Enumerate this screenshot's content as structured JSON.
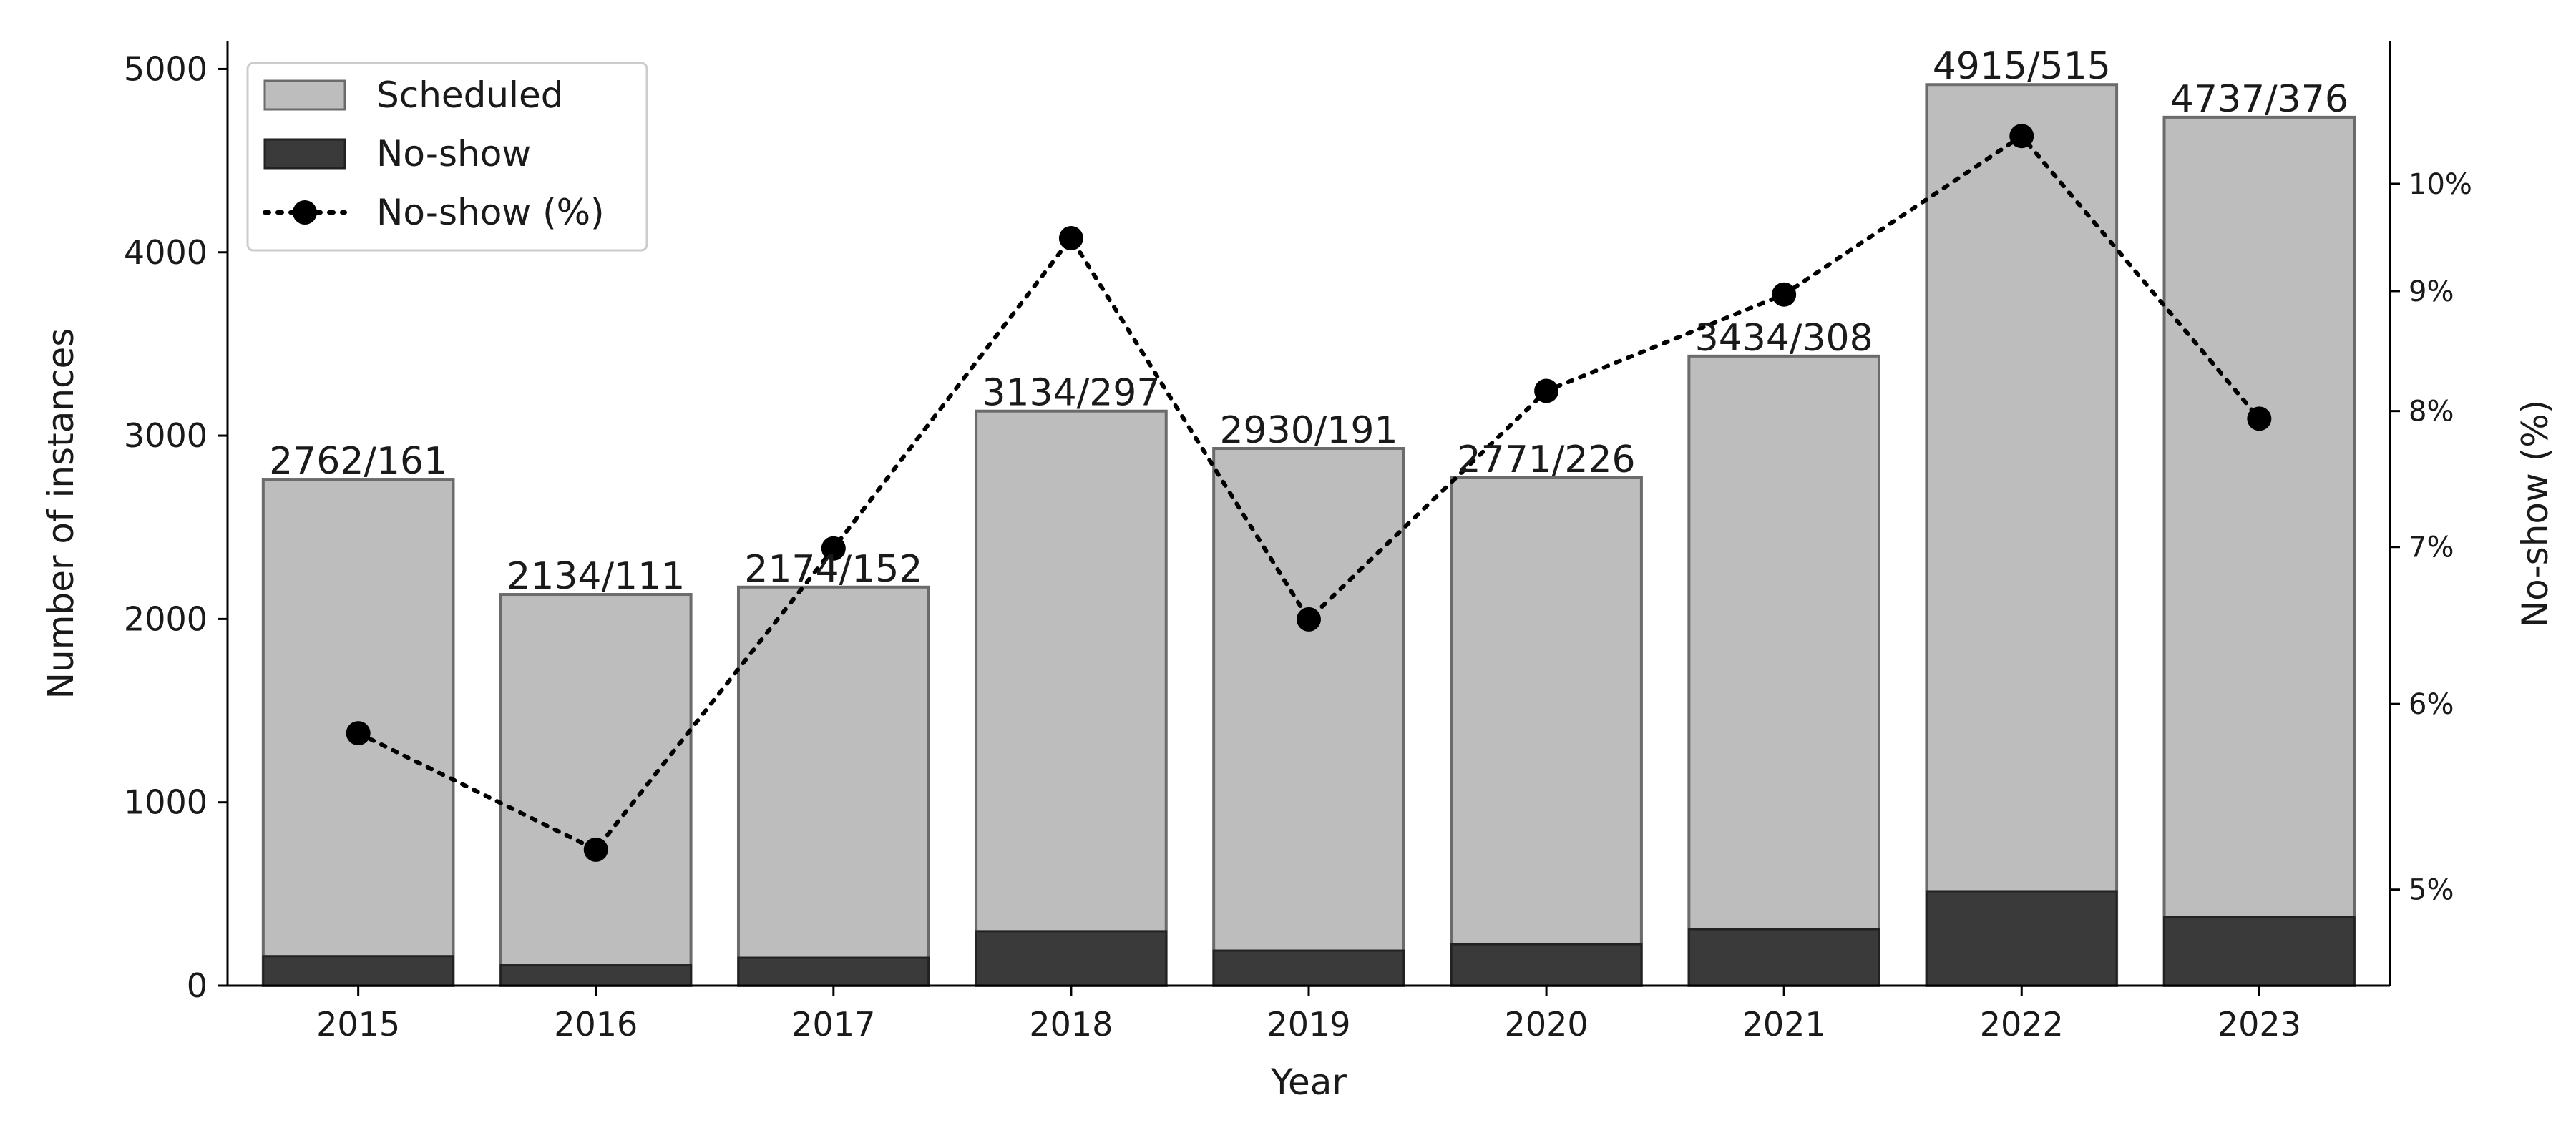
{
  "chart_data": {
    "type": "bar",
    "categories": [
      "2015",
      "2016",
      "2017",
      "2018",
      "2019",
      "2020",
      "2021",
      "2022",
      "2023"
    ],
    "series": [
      {
        "name": "Scheduled",
        "kind": "bar",
        "values": [
          2762,
          2134,
          2174,
          3134,
          2930,
          2771,
          3434,
          4915,
          4737
        ],
        "color": "#bdbdbd"
      },
      {
        "name": "No-show",
        "kind": "bar",
        "values": [
          161,
          111,
          152,
          297,
          191,
          226,
          308,
          515,
          376
        ],
        "color": "#3a3a3a"
      },
      {
        "name": "No-show (%)",
        "kind": "line",
        "axis": "right",
        "values": [
          5.83,
          5.2,
          6.99,
          9.48,
          6.52,
          8.16,
          8.97,
          10.48,
          7.94
        ],
        "color": "#000000",
        "line_style": "dotted"
      }
    ],
    "bar_labels": [
      "2762/161",
      "2134/111",
      "2174/152",
      "3134/297",
      "2930/191",
      "2771/226",
      "3434/308",
      "4915/515",
      "4737/376"
    ],
    "xlabel": "Year",
    "ylabel": "Number of instances",
    "ylabel_right": "No-show (%)",
    "ylim": [
      0,
      5150
    ],
    "yticks": [
      0,
      1000,
      2000,
      3000,
      4000,
      5000
    ],
    "y_right_scale": "log",
    "y_right_lim": [
      4.55,
      11.5
    ],
    "y_right_ticks": [
      5,
      6,
      7,
      8,
      9,
      10
    ],
    "y_right_tick_labels": [
      "5%",
      "6%",
      "7%",
      "8%",
      "9%",
      "10%"
    ],
    "legend": {
      "position": "top-left",
      "entries": [
        "Scheduled",
        "No-show",
        "No-show (%)"
      ]
    },
    "grid": false
  }
}
